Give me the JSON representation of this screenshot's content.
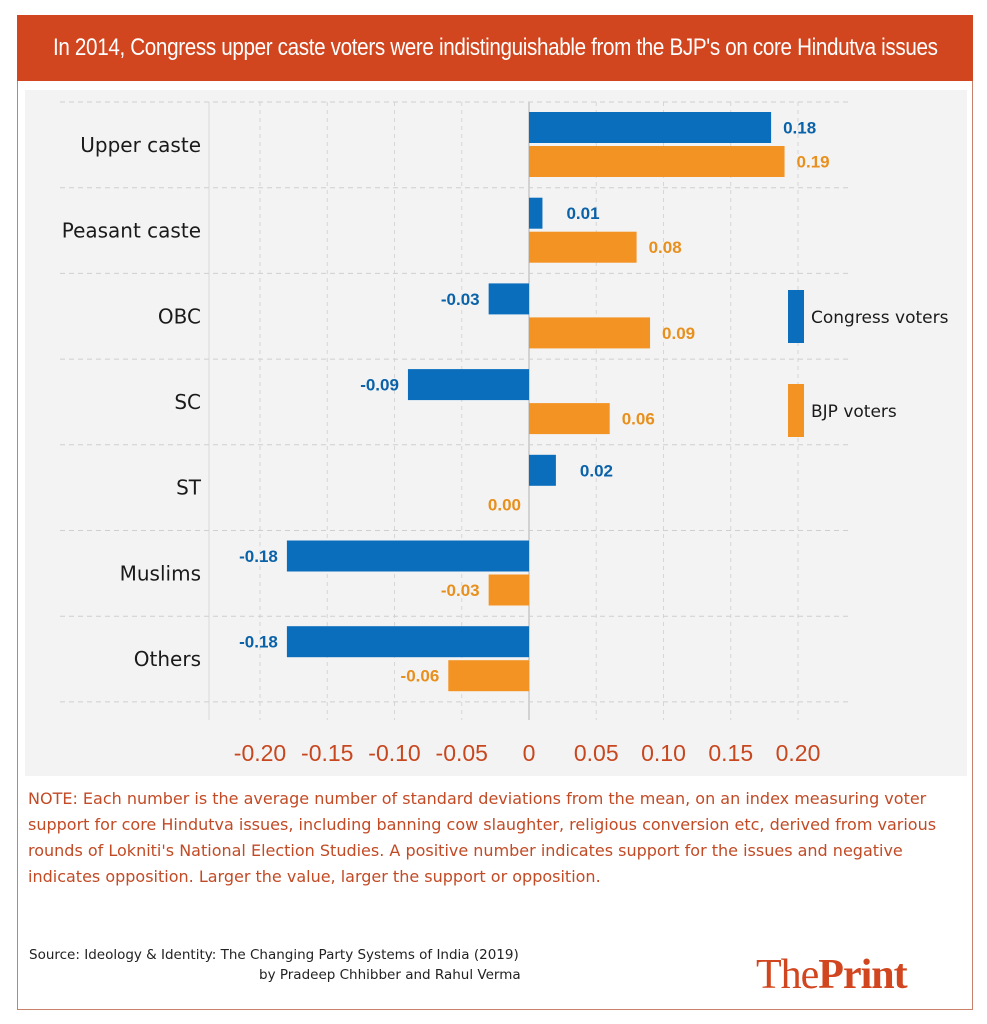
{
  "header": {
    "title": "In 2014, Congress upper caste voters were indistinguishable from the BJP's on core Hindutva issues"
  },
  "colors": {
    "title_bg": "#d1461f",
    "congress": "#0a6ebd",
    "bjp": "#f39324",
    "congress_label": "#0a62a8",
    "bjp_label": "#e8901e",
    "tick": "#c7471f",
    "note": "#c24a25"
  },
  "chart_data": {
    "type": "bar",
    "orientation": "horizontal",
    "title": "In 2014, Congress upper caste voters were indistinguishable from the BJP's on core Hindutva issues",
    "xlabel": "",
    "ylabel": "",
    "xlim": [
      -0.2,
      0.2
    ],
    "xticks": [
      -0.2,
      -0.15,
      -0.1,
      -0.05,
      0,
      0.05,
      0.1,
      0.15,
      0.2
    ],
    "xtick_labels": [
      "-0.20",
      "-0.15",
      "-0.10",
      "-0.05",
      "0",
      "0.05",
      "0.10",
      "0.15",
      "0.20"
    ],
    "grid": true,
    "legend_position": "right",
    "categories": [
      "Upper caste",
      "Peasant caste",
      "OBC",
      "SC",
      "ST",
      "Muslims",
      "Others"
    ],
    "series": [
      {
        "name": "Congress voters",
        "values": [
          0.18,
          0.01,
          -0.03,
          -0.09,
          0.02,
          -0.18,
          -0.18
        ],
        "labels": [
          "0.18",
          "0.01",
          "-0.03",
          "-0.09",
          "0.02",
          "-0.18",
          "-0.18"
        ]
      },
      {
        "name": "BJP voters",
        "values": [
          0.19,
          0.08,
          0.09,
          0.06,
          0.0,
          -0.03,
          -0.06
        ],
        "labels": [
          "0.19",
          "0.08",
          "0.09",
          "0.06",
          "0.00",
          "-0.03",
          "-0.06"
        ]
      }
    ]
  },
  "note": "NOTE: Each number is the average number of standard deviations from the mean, on an index measuring voter support for core Hindutva issues, including banning cow slaughter, religious conversion etc, derived from various rounds of Lokniti's National Election Studies. A positive number indicates support for the issues and negative indicates opposition. Larger the value, larger the support or opposition.",
  "source": {
    "line1": "Source: Ideology & Identity: The Changing Party Systems of India (2019)",
    "line2": "by Pradeep Chhibber and Rahul Verma"
  },
  "logo": {
    "part1": "The",
    "part2": "Print"
  }
}
